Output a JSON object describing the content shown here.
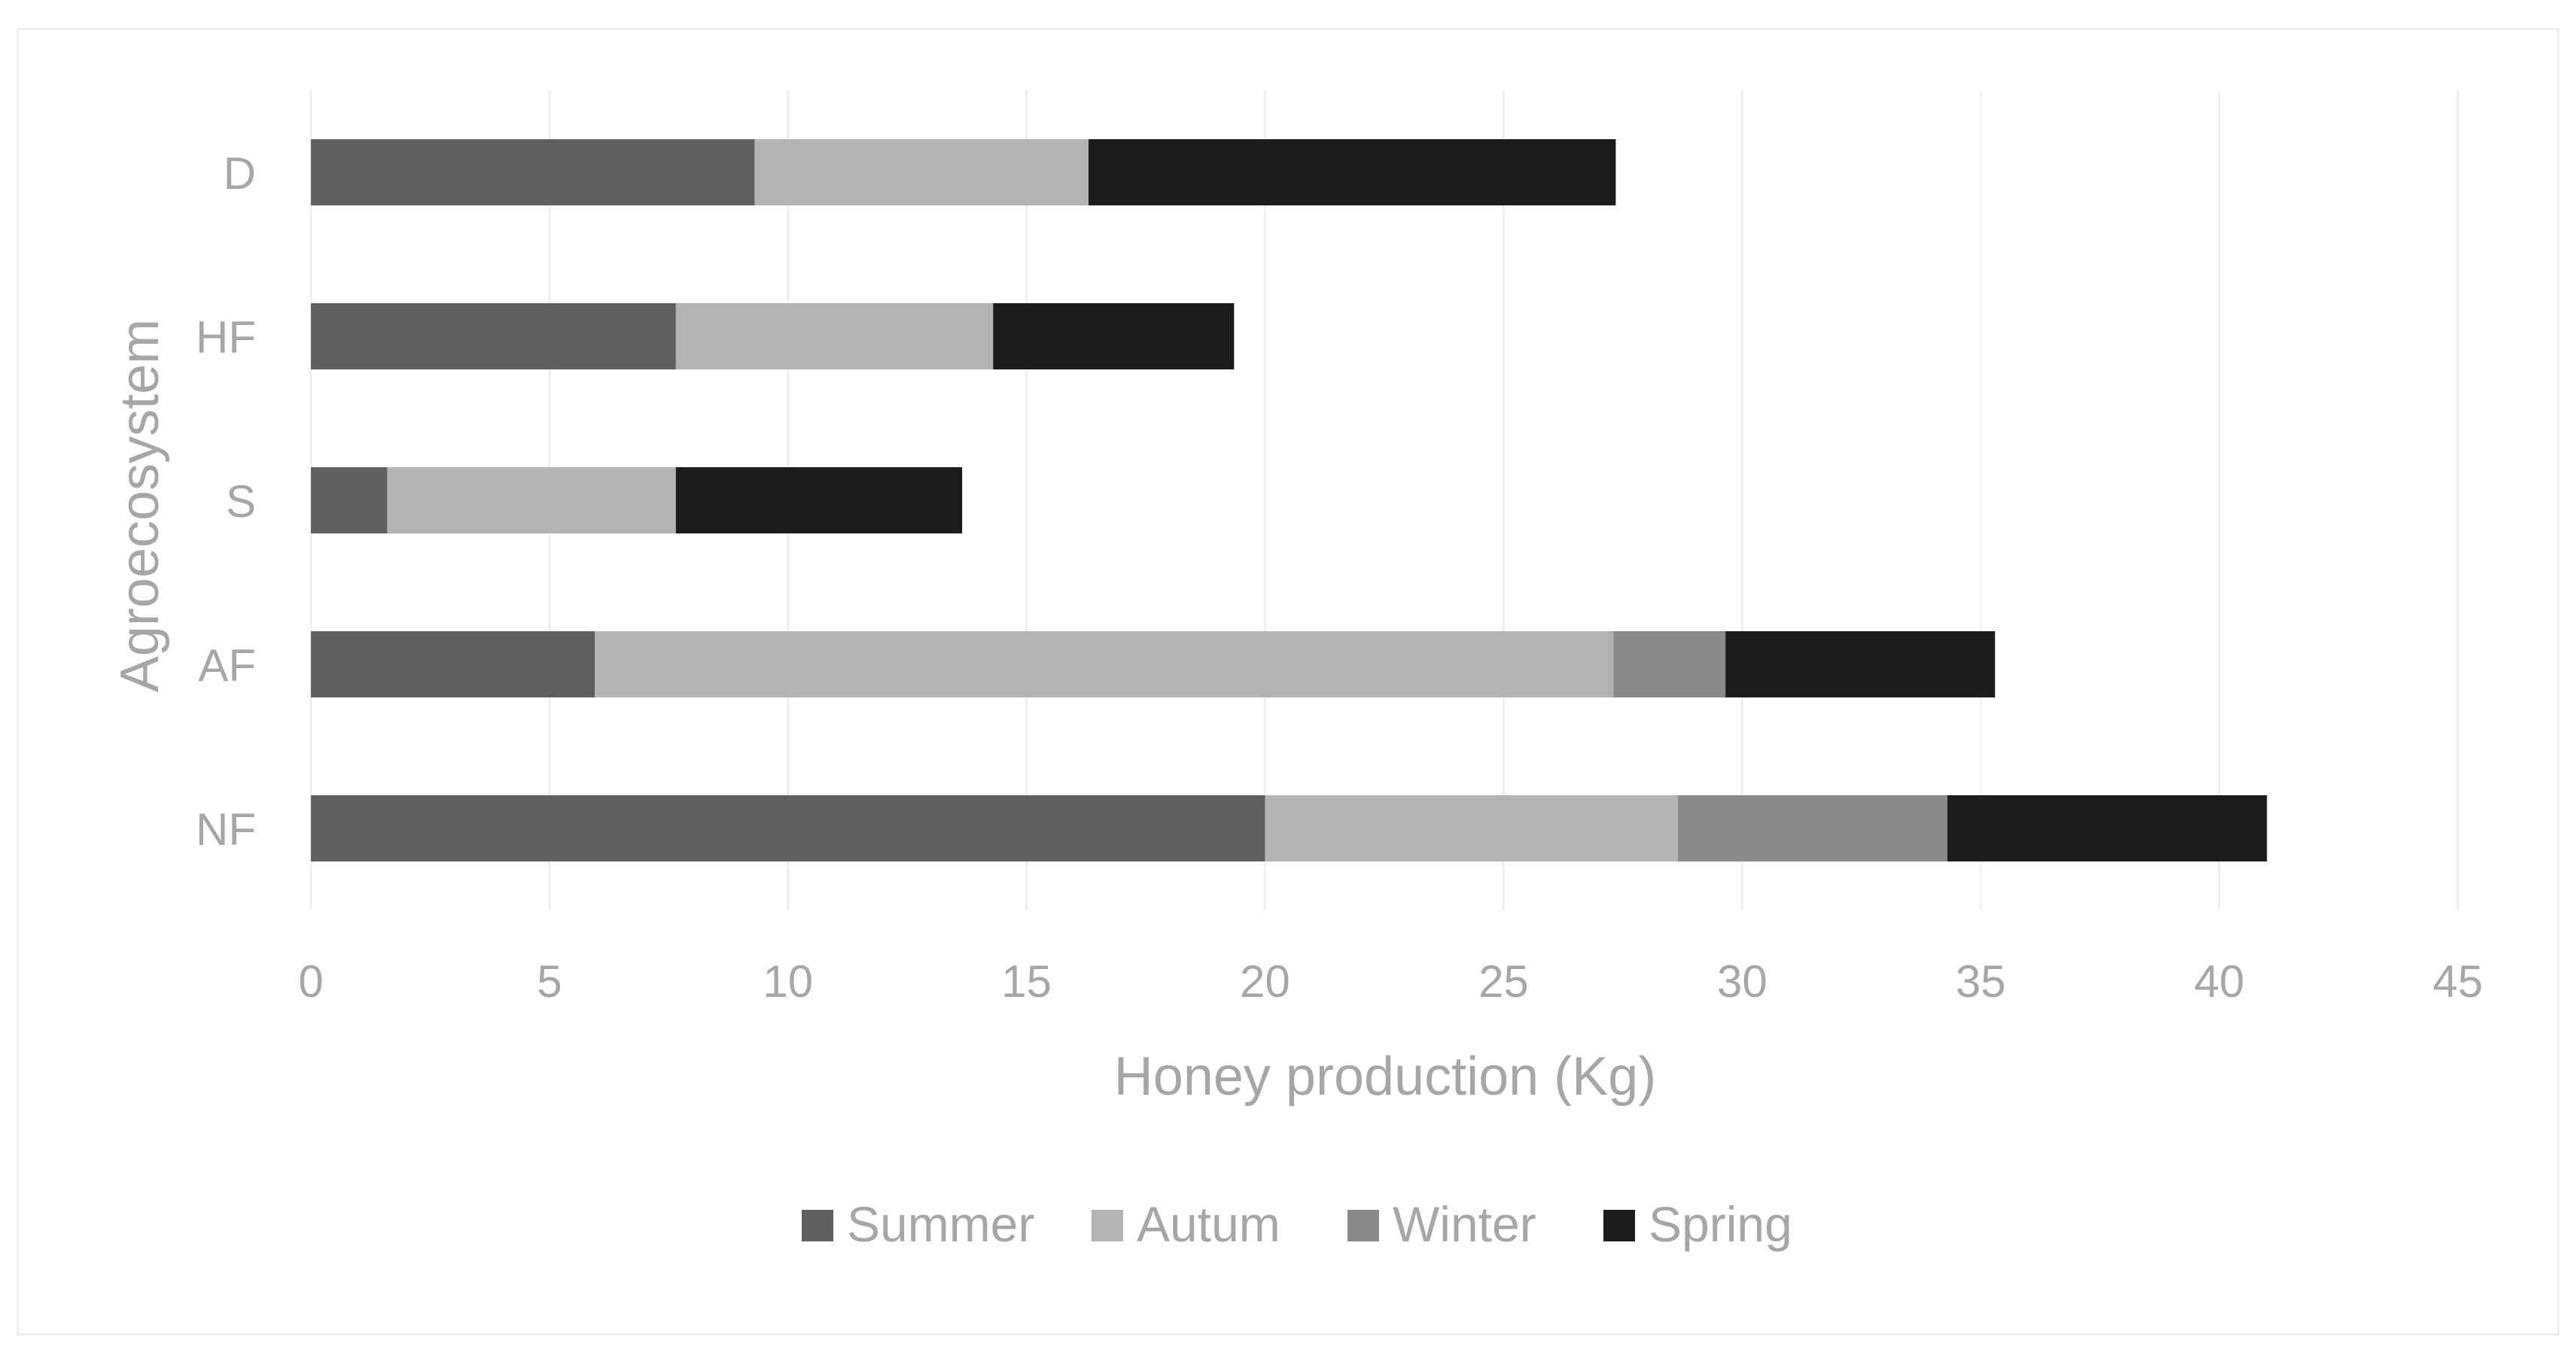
{
  "chart_data": {
    "type": "bar",
    "orientation": "horizontal",
    "stacked": true,
    "categories": [
      "NF",
      "AF",
      "S",
      "HF",
      "D"
    ],
    "series": [
      {
        "name": "Summer",
        "values": [
          20.0,
          5.95,
          1.6,
          7.65,
          9.3
        ],
        "color": "#5f5f5f"
      },
      {
        "name": "Autum",
        "values": [
          8.65,
          21.35,
          6.05,
          6.65,
          7.0
        ],
        "color": "#b3b3b3"
      },
      {
        "name": "Winter",
        "values": [
          5.65,
          2.35,
          0,
          0,
          0
        ],
        "color": "#8a8a8a"
      },
      {
        "name": "Spring",
        "values": [
          6.7,
          5.65,
          6.0,
          5.05,
          11.05
        ],
        "color": "#1c1c1c"
      }
    ],
    "xlabel": "Honey production (Kg)",
    "ylabel": "Agroecosystem",
    "xlim": [
      0,
      45
    ],
    "xticks": [
      "0",
      "5",
      "10",
      "15",
      "20",
      "25",
      "30",
      "35",
      "40",
      "45"
    ],
    "grid": "vertical",
    "legend_position": "bottom"
  }
}
